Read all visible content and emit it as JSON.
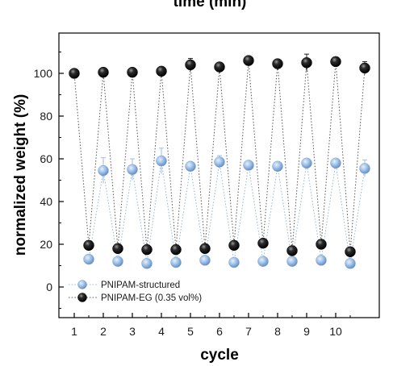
{
  "chart_data": {
    "type": "scatter",
    "top_label": "time (min)",
    "xlabel": "cycle",
    "ylabel": "normalized weight (%)",
    "x_ticks": [
      1,
      2,
      3,
      4,
      5,
      6,
      7,
      8,
      9,
      10
    ],
    "y_ticks": [
      0,
      20,
      40,
      60,
      80,
      100
    ],
    "xlim": [
      0.5,
      11
    ],
    "ylim": [
      -15,
      120
    ],
    "grid": false,
    "legend_position": "bottom-left",
    "series": [
      {
        "name": "PNIPAM-structured",
        "color": "#8fb4df",
        "points": [
          {
            "x": 1.5,
            "y": 13,
            "err": 1
          },
          {
            "x": 2.0,
            "y": 54.5,
            "err": 6
          },
          {
            "x": 2.5,
            "y": 12,
            "err": 1
          },
          {
            "x": 3.0,
            "y": 55,
            "err": 5
          },
          {
            "x": 3.5,
            "y": 11,
            "err": 1
          },
          {
            "x": 4.0,
            "y": 59,
            "err": 6
          },
          {
            "x": 4.5,
            "y": 11.5,
            "err": 1
          },
          {
            "x": 5.0,
            "y": 56.5,
            "err": 2
          },
          {
            "x": 5.5,
            "y": 12.5,
            "err": 1
          },
          {
            "x": 6.0,
            "y": 58.5,
            "err": 3
          },
          {
            "x": 6.5,
            "y": 11.5,
            "err": 1
          },
          {
            "x": 7.0,
            "y": 57,
            "err": 2
          },
          {
            "x": 7.5,
            "y": 12,
            "err": 1
          },
          {
            "x": 8.0,
            "y": 56.5,
            "err": 1
          },
          {
            "x": 8.5,
            "y": 12,
            "err": 1
          },
          {
            "x": 9.0,
            "y": 58,
            "err": 2
          },
          {
            "x": 9.5,
            "y": 12.5,
            "err": 1
          },
          {
            "x": 10.0,
            "y": 58,
            "err": 2
          },
          {
            "x": 10.5,
            "y": 11,
            "err": 1
          },
          {
            "x": 11.0,
            "y": 55.5,
            "err": 4
          }
        ]
      },
      {
        "name": "PNIPAM-EG (0.35 vol%)",
        "color": "#111111",
        "points": [
          {
            "x": 1.0,
            "y": 100,
            "err": 0.5
          },
          {
            "x": 1.5,
            "y": 19.5,
            "err": 1
          },
          {
            "x": 2.0,
            "y": 100.5,
            "err": 2
          },
          {
            "x": 2.5,
            "y": 18,
            "err": 1
          },
          {
            "x": 3.0,
            "y": 100.5,
            "err": 1
          },
          {
            "x": 3.5,
            "y": 17.5,
            "err": 1
          },
          {
            "x": 4.0,
            "y": 101,
            "err": 1
          },
          {
            "x": 4.5,
            "y": 17.5,
            "err": 1
          },
          {
            "x": 5.0,
            "y": 104,
            "err": 3
          },
          {
            "x": 5.5,
            "y": 18,
            "err": 1
          },
          {
            "x": 6.0,
            "y": 103,
            "err": 1
          },
          {
            "x": 6.5,
            "y": 19.5,
            "err": 1
          },
          {
            "x": 7.0,
            "y": 106,
            "err": 2
          },
          {
            "x": 7.5,
            "y": 20.5,
            "err": 1
          },
          {
            "x": 8.0,
            "y": 104.5,
            "err": 1
          },
          {
            "x": 8.5,
            "y": 17,
            "err": 1
          },
          {
            "x": 9.0,
            "y": 105,
            "err": 4
          },
          {
            "x": 9.5,
            "y": 20,
            "err": 1
          },
          {
            "x": 10.0,
            "y": 105.5,
            "err": 1
          },
          {
            "x": 10.5,
            "y": 16.5,
            "err": 1
          },
          {
            "x": 11.0,
            "y": 102.5,
            "err": 3
          }
        ]
      }
    ]
  }
}
